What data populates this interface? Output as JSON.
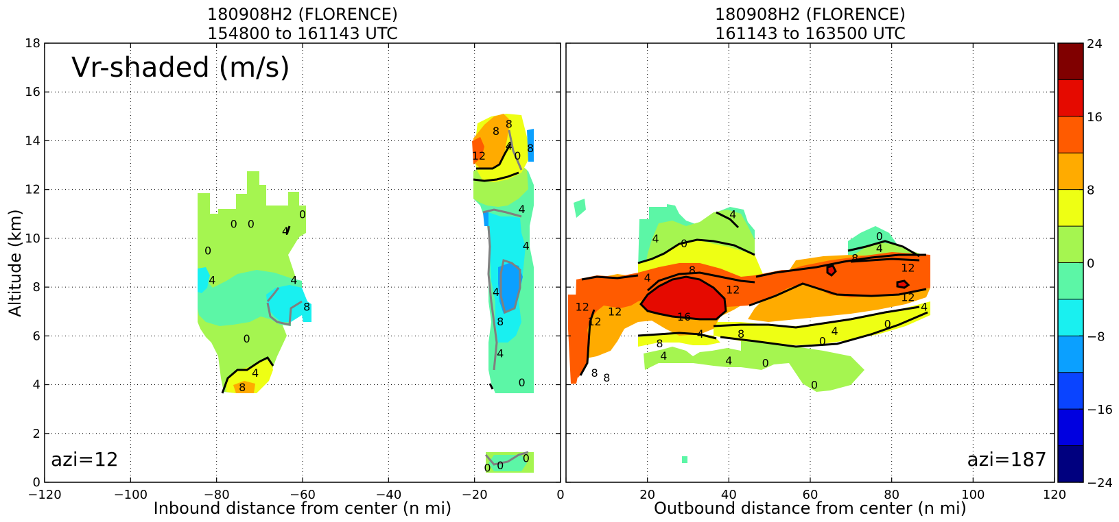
{
  "figure": {
    "annotation_text": "Vr-shaded (m/s)"
  },
  "colors": {
    "colormap": [
      "#00007f",
      "#0000e0",
      "#0a44ff",
      "#0ba0ff",
      "#19f0f0",
      "#5cf6a6",
      "#a5f550",
      "#eeff14",
      "#ffab00",
      "#ff5b00",
      "#e50a00",
      "#800000"
    ]
  },
  "chart_data": [
    {
      "type": "heatmap",
      "title_line1": "180908H2 (FLORENCE)",
      "title_line2": "154800 to 161143 UTC",
      "xlabel": "Inbound distance from center (n mi)",
      "ylabel": "Altitude (km)",
      "xlim": [
        -120,
        0
      ],
      "ylim": [
        0,
        18
      ],
      "xticks": [
        "−120",
        "−100",
        "−80",
        "−60",
        "−40",
        "−20",
        "0"
      ],
      "yticks": [
        "0",
        "2",
        "4",
        "6",
        "8",
        "10",
        "12",
        "14",
        "16",
        "18"
      ],
      "grid": true,
      "corner_label": "azi=12",
      "contour_labels": [
        {
          "text": "0",
          "x": -76,
          "y": 10.6
        },
        {
          "text": "0",
          "x": -72,
          "y": 10.6
        },
        {
          "text": "4",
          "x": -64,
          "y": 10.3
        },
        {
          "text": "0",
          "x": -60,
          "y": 11.0
        },
        {
          "text": "0",
          "x": -82,
          "y": 9.5
        },
        {
          "text": "4",
          "x": -81,
          "y": 8.3
        },
        {
          "text": "4",
          "x": -62,
          "y": 8.3
        },
        {
          "text": "8",
          "x": -59,
          "y": 7.2
        },
        {
          "text": "0",
          "x": -73,
          "y": 5.9
        },
        {
          "text": "4",
          "x": -71,
          "y": 4.5
        },
        {
          "text": "8",
          "x": -74,
          "y": 3.9
        },
        {
          "text": "8",
          "x": -15,
          "y": 14.4
        },
        {
          "text": "8",
          "x": -12,
          "y": 14.7
        },
        {
          "text": "12",
          "x": -19,
          "y": 13.4
        },
        {
          "text": "4",
          "x": -12,
          "y": 13.8
        },
        {
          "text": "0",
          "x": -10,
          "y": 13.4
        },
        {
          "text": "8",
          "x": -7,
          "y": 13.7
        },
        {
          "text": "4",
          "x": -9,
          "y": 11.2
        },
        {
          "text": "4",
          "x": -8,
          "y": 9.7
        },
        {
          "text": "4",
          "x": -15,
          "y": 7.8
        },
        {
          "text": "8",
          "x": -14,
          "y": 6.6
        },
        {
          "text": "4",
          "x": -14,
          "y": 5.3
        },
        {
          "text": "0",
          "x": -9,
          "y": 4.1
        },
        {
          "text": "0",
          "x": -17,
          "y": 0.6
        },
        {
          "text": "0",
          "x": -14,
          "y": 0.7
        },
        {
          "text": "0",
          "x": -8,
          "y": 1.0
        }
      ]
    },
    {
      "type": "heatmap",
      "title_line1": "180908H2 (FLORENCE)",
      "title_line2": "161143 to 163500 UTC",
      "xlabel": "Outbound distance from center (n mi)",
      "ylabel": "",
      "xlim": [
        0,
        120
      ],
      "ylim": [
        0,
        18
      ],
      "xticks": [
        "0",
        "20",
        "40",
        "60",
        "80",
        "100",
        "120"
      ],
      "yticks": [
        "0",
        "2",
        "4",
        "6",
        "8",
        "10",
        "12",
        "14",
        "16",
        "18"
      ],
      "grid": true,
      "corner_label": "azi=187",
      "contour_labels": [
        {
          "text": "4",
          "x": 41,
          "y": 11.0
        },
        {
          "text": "4",
          "x": 22,
          "y": 10.0
        },
        {
          "text": "0",
          "x": 29,
          "y": 9.8
        },
        {
          "text": "4",
          "x": 20,
          "y": 8.4
        },
        {
          "text": "8",
          "x": 31,
          "y": 8.7
        },
        {
          "text": "12",
          "x": 41,
          "y": 7.9
        },
        {
          "text": "0",
          "x": 77,
          "y": 10.1
        },
        {
          "text": "4",
          "x": 77,
          "y": 9.6
        },
        {
          "text": "8",
          "x": 71,
          "y": 9.2
        },
        {
          "text": "12",
          "x": 84,
          "y": 8.8
        },
        {
          "text": "12",
          "x": 84,
          "y": 7.6
        },
        {
          "text": "4",
          "x": 88,
          "y": 7.2
        },
        {
          "text": "0",
          "x": 79,
          "y": 6.5
        },
        {
          "text": "4",
          "x": 66,
          "y": 6.2
        },
        {
          "text": "0",
          "x": 63,
          "y": 5.8
        },
        {
          "text": "16",
          "x": 29,
          "y": 6.8
        },
        {
          "text": "12",
          "x": 12,
          "y": 7.0
        },
        {
          "text": "12",
          "x": 7,
          "y": 6.6
        },
        {
          "text": "4",
          "x": 33,
          "y": 6.1
        },
        {
          "text": "8",
          "x": 43,
          "y": 6.1
        },
        {
          "text": "8",
          "x": 23,
          "y": 5.7
        },
        {
          "text": "4",
          "x": 24,
          "y": 5.2
        },
        {
          "text": "4",
          "x": 40,
          "y": 5.0
        },
        {
          "text": "0",
          "x": 49,
          "y": 4.9
        },
        {
          "text": "8",
          "x": 7,
          "y": 4.5
        },
        {
          "text": "8",
          "x": 10,
          "y": 4.3
        },
        {
          "text": "12",
          "x": 4,
          "y": 7.2
        },
        {
          "text": "0",
          "x": 61,
          "y": 4.0
        }
      ]
    }
  ],
  "colorbar": {
    "ticks": [
      "24",
      "16",
      "8",
      "0",
      "−8",
      "−16",
      "−24"
    ]
  }
}
